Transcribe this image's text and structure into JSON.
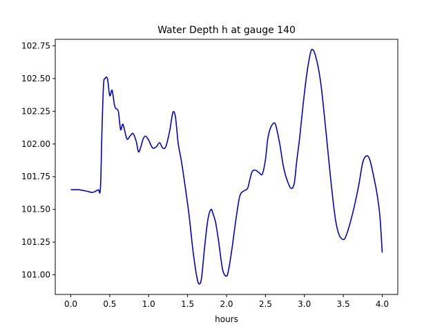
{
  "chart_data": {
    "type": "line",
    "title": "Water Depth h at gauge 140",
    "xlabel": "hours",
    "ylabel": "",
    "xlim": [
      -0.2,
      4.2
    ],
    "ylim": [
      100.85,
      102.8
    ],
    "x_ticks": [
      0.0,
      0.5,
      1.0,
      1.5,
      2.0,
      2.5,
      3.0,
      3.5,
      4.0
    ],
    "x_tick_labels": [
      "0.0",
      "0.5",
      "1.0",
      "1.5",
      "2.0",
      "2.5",
      "3.0",
      "3.5",
      "4.0"
    ],
    "y_ticks": [
      101.0,
      101.25,
      101.5,
      101.75,
      102.0,
      102.25,
      102.5,
      102.75
    ],
    "y_tick_labels": [
      "101.00",
      "101.25",
      "101.50",
      "101.75",
      "102.00",
      "102.25",
      "102.50",
      "102.75"
    ],
    "grid": false,
    "series": [
      {
        "color": "#0000cc",
        "x": [
          0.0,
          0.1,
          0.2,
          0.28,
          0.35,
          0.38,
          0.4,
          0.42,
          0.44,
          0.47,
          0.5,
          0.53,
          0.56,
          0.58,
          0.61,
          0.64,
          0.67,
          0.72,
          0.76,
          0.8,
          0.84,
          0.87,
          0.9,
          0.93,
          0.96,
          1.0,
          1.05,
          1.1,
          1.14,
          1.18,
          1.22,
          1.27,
          1.31,
          1.34,
          1.36,
          1.38,
          1.42,
          1.47,
          1.52,
          1.57,
          1.62,
          1.65,
          1.68,
          1.72,
          1.76,
          1.8,
          1.83,
          1.86,
          1.9,
          1.95,
          2.0,
          2.03,
          2.07,
          2.12,
          2.17,
          2.22,
          2.27,
          2.3,
          2.33,
          2.37,
          2.42,
          2.46,
          2.5,
          2.53,
          2.57,
          2.62,
          2.65,
          2.69,
          2.73,
          2.78,
          2.83,
          2.87,
          2.9,
          2.94,
          2.98,
          3.03,
          3.08,
          3.11,
          3.14,
          3.18,
          3.22,
          3.28,
          3.34,
          3.4,
          3.45,
          3.5,
          3.53,
          3.58,
          3.64,
          3.7,
          3.75,
          3.8,
          3.84,
          3.88,
          3.93,
          3.97,
          4.0
        ],
        "y": [
          101.65,
          101.65,
          101.64,
          101.63,
          101.65,
          101.66,
          102.1,
          102.45,
          102.5,
          102.5,
          102.37,
          102.41,
          102.3,
          102.27,
          102.25,
          102.11,
          102.15,
          102.04,
          102.06,
          102.08,
          102.02,
          101.94,
          101.98,
          102.04,
          102.06,
          102.03,
          101.97,
          101.98,
          102.01,
          101.97,
          101.98,
          102.1,
          102.24,
          102.22,
          102.12,
          102.0,
          101.87,
          101.67,
          101.45,
          101.18,
          100.98,
          100.93,
          100.98,
          101.22,
          101.42,
          101.5,
          101.46,
          101.4,
          101.25,
          101.04,
          100.99,
          101.05,
          101.2,
          101.42,
          101.6,
          101.64,
          101.66,
          101.73,
          101.79,
          101.8,
          101.78,
          101.77,
          101.88,
          102.04,
          102.13,
          102.16,
          102.1,
          101.98,
          101.83,
          101.72,
          101.66,
          101.7,
          101.86,
          102.05,
          102.28,
          102.53,
          102.7,
          102.72,
          102.68,
          102.58,
          102.42,
          102.08,
          101.72,
          101.42,
          101.3,
          101.27,
          101.29,
          101.38,
          101.52,
          101.69,
          101.86,
          101.91,
          101.88,
          101.78,
          101.63,
          101.45,
          101.17
        ]
      }
    ]
  }
}
